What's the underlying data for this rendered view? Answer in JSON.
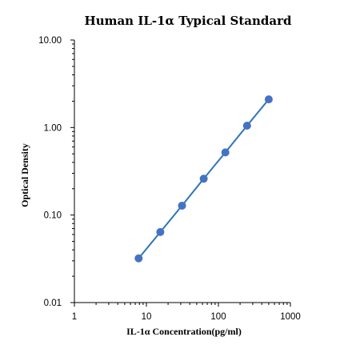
{
  "chart_data": {
    "type": "scatter",
    "title": "Human IL-1α Typical Standard",
    "xlabel": "IL-1α Concentration(pg/ml)",
    "ylabel": "Optical Density",
    "xscale": "log",
    "yscale": "log",
    "xlim": [
      1,
      1000
    ],
    "ylim": [
      0.01,
      10
    ],
    "x_ticks": [
      "1",
      "10",
      "100",
      "1000"
    ],
    "y_ticks": [
      "0.01",
      "0.10",
      "1.00",
      "10.00"
    ],
    "grid": false,
    "legend": "none",
    "series": [
      {
        "x": [
          7.8,
          15.6,
          31.25,
          62.5,
          125,
          250,
          500
        ],
        "y": [
          0.032,
          0.064,
          0.128,
          0.26,
          0.52,
          1.05,
          2.1
        ],
        "color": "#4472C4",
        "line_color": "#2E75B6",
        "fit_line": true
      }
    ]
  }
}
